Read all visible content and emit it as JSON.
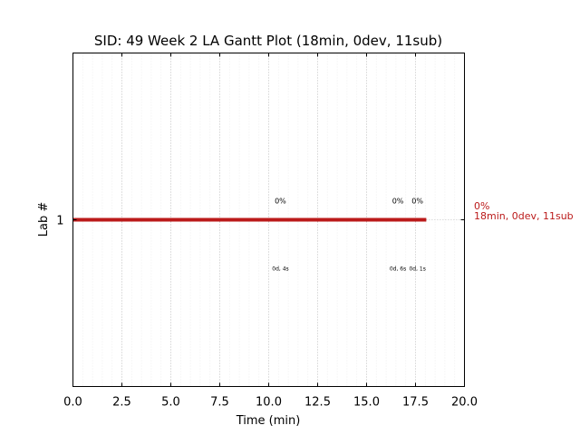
{
  "chart_data": {
    "type": "gantt",
    "title": "SID: 49 Week 2 LA Gantt Plot (18min, 0dev, 11sub)",
    "xlabel": "Time (min)",
    "ylabel": "Lab #",
    "xlim": [
      0,
      20
    ],
    "ylim": [
      0,
      2
    ],
    "grid": true,
    "x_ticks": [
      "0.0",
      "2.5",
      "5.0",
      "7.5",
      "10.0",
      "12.5",
      "15.0",
      "17.5",
      "20.0"
    ],
    "y_ticks": [
      "1"
    ],
    "bar_color": "#bb1a1a",
    "bars": [
      {
        "lab": 1,
        "start": 0,
        "end": 18.05
      }
    ],
    "submissions": [
      {
        "x": 10.6,
        "top_label": "0%",
        "bottom_label": "0d, 4s"
      },
      {
        "x": 16.6,
        "top_label": "0%",
        "bottom_label": "0d, 6s"
      },
      {
        "x": 17.6,
        "top_label": "0%",
        "bottom_label": "0d, 1s"
      }
    ],
    "bar_annotation": {
      "line1": "0%",
      "line2": "18min, 0dev, 11sub",
      "color": "#bb1a1a"
    }
  }
}
